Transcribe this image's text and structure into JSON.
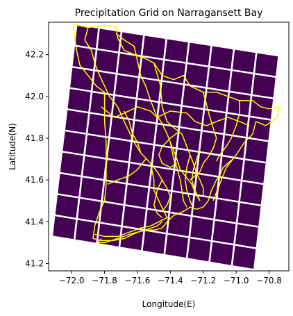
{
  "chart_data": {
    "type": "heatmap",
    "title": "Precipitation Grid on Narragansett Bay",
    "xlabel": "Longitude(E)",
    "ylabel": "Latitude(N)",
    "xlim": [
      -72.14,
      -70.68
    ],
    "ylim": [
      41.165,
      42.355
    ],
    "xticks": [
      -72.0,
      -71.8,
      -71.6,
      -71.4,
      -71.2,
      -71.0,
      -70.8
    ],
    "xtick_labels": [
      "−72.0",
      "−71.8",
      "−71.6",
      "−71.4",
      "−71.2",
      "−71.0",
      "−70.8"
    ],
    "yticks": [
      41.2,
      41.4,
      41.6,
      41.8,
      42.0,
      42.2
    ],
    "ytick_labels": [
      "41.2",
      "41.4",
      "41.6",
      "41.8",
      "42.0",
      "42.2"
    ],
    "grid": {
      "rows": 10,
      "cols": 9,
      "corners": {
        "top_left": [
          -71.97,
          42.345
        ],
        "top_right": [
          -70.74,
          42.195
        ],
        "bottom_left": [
          -72.12,
          41.33
        ],
        "bottom_right": [
          -70.89,
          41.17
        ]
      },
      "cell_color": "#440154"
    },
    "boundary_color": "#ffff00",
    "boundaries": [
      [
        [
          -71.99,
          42.345
        ],
        [
          -71.9,
          42.33
        ],
        [
          -71.8,
          42.34
        ],
        [
          -71.73,
          42.33
        ],
        [
          -71.72,
          42.28
        ],
        [
          -71.68,
          42.22
        ],
        [
          -71.62,
          42.2
        ],
        [
          -71.55,
          42.18
        ],
        [
          -71.5,
          42.16
        ],
        [
          -71.45,
          42.1
        ],
        [
          -71.38,
          42.08
        ],
        [
          -71.32,
          42.1
        ],
        [
          -71.28,
          42.05
        ],
        [
          -71.2,
          42.02
        ],
        [
          -71.12,
          42.02
        ],
        [
          -71.05,
          42.0
        ],
        [
          -70.98,
          41.98
        ],
        [
          -70.9,
          41.98
        ],
        [
          -70.85,
          41.95
        ],
        [
          -70.8,
          41.94
        ],
        [
          -70.74,
          41.95
        ],
        [
          -70.75,
          41.9
        ],
        [
          -70.82,
          41.86
        ],
        [
          -70.88,
          41.88
        ],
        [
          -70.9,
          41.82
        ],
        [
          -70.95,
          41.78
        ],
        [
          -71.0,
          41.72
        ],
        [
          -71.02,
          41.7
        ],
        [
          -71.08,
          41.66
        ],
        [
          -71.1,
          41.62
        ],
        [
          -71.12,
          41.6
        ],
        [
          -71.15,
          41.55
        ],
        [
          -71.17,
          41.5
        ],
        [
          -71.2,
          41.47
        ],
        [
          -71.24,
          41.46
        ],
        [
          -71.28,
          41.47
        ],
        [
          -71.32,
          41.45
        ],
        [
          -71.38,
          41.43
        ],
        [
          -71.42,
          41.4
        ],
        [
          -71.45,
          41.37
        ],
        [
          -71.5,
          41.36
        ],
        [
          -71.55,
          41.36
        ],
        [
          -71.6,
          41.35
        ],
        [
          -71.68,
          41.32
        ],
        [
          -71.75,
          41.31
        ],
        [
          -71.82,
          41.31
        ],
        [
          -71.87,
          41.32
        ],
        [
          -71.86,
          41.38
        ],
        [
          -71.83,
          41.45
        ],
        [
          -71.8,
          41.5
        ],
        [
          -71.79,
          41.58
        ],
        [
          -71.79,
          41.68
        ],
        [
          -71.79,
          41.78
        ],
        [
          -71.8,
          41.88
        ],
        [
          -71.8,
          41.98
        ],
        [
          -71.8,
          42.02
        ],
        [
          -71.85,
          42.05
        ],
        [
          -71.9,
          42.1
        ],
        [
          -71.95,
          42.15
        ],
        [
          -71.97,
          42.22
        ],
        [
          -71.98,
          42.28
        ],
        [
          -71.99,
          42.345
        ]
      ],
      [
        [
          -71.9,
          42.33
        ],
        [
          -71.92,
          42.27
        ],
        [
          -71.88,
          42.22
        ],
        [
          -71.86,
          42.16
        ],
        [
          -71.83,
          42.1
        ],
        [
          -71.8,
          42.05
        ],
        [
          -71.77,
          42.0
        ],
        [
          -71.72,
          41.95
        ],
        [
          -71.68,
          41.88
        ],
        [
          -71.65,
          41.83
        ],
        [
          -71.62,
          41.78
        ],
        [
          -71.58,
          41.73
        ],
        [
          -71.52,
          41.68
        ],
        [
          -71.48,
          41.64
        ],
        [
          -71.45,
          41.6
        ],
        [
          -71.42,
          41.56
        ],
        [
          -71.4,
          41.52
        ],
        [
          -71.42,
          41.48
        ],
        [
          -71.45,
          41.45
        ]
      ],
      [
        [
          -71.73,
          42.3
        ],
        [
          -71.68,
          42.27
        ],
        [
          -71.62,
          42.24
        ],
        [
          -71.6,
          42.17
        ],
        [
          -71.58,
          42.1
        ],
        [
          -71.55,
          42.05
        ],
        [
          -71.52,
          41.98
        ],
        [
          -71.49,
          41.92
        ],
        [
          -71.45,
          41.87
        ],
        [
          -71.42,
          41.82
        ],
        [
          -71.4,
          41.78
        ],
        [
          -71.38,
          41.74
        ],
        [
          -71.36,
          41.7
        ],
        [
          -71.34,
          41.65
        ],
        [
          -71.3,
          41.61
        ],
        [
          -71.27,
          41.58
        ],
        [
          -71.25,
          41.54
        ],
        [
          -71.22,
          41.5
        ]
      ],
      [
        [
          -71.5,
          42.16
        ],
        [
          -71.46,
          42.05
        ],
        [
          -71.45,
          41.95
        ],
        [
          -71.42,
          41.88
        ],
        [
          -71.38,
          41.85
        ],
        [
          -71.33,
          41.82
        ],
        [
          -71.3,
          41.76
        ],
        [
          -71.28,
          41.72
        ],
        [
          -71.26,
          41.68
        ],
        [
          -71.24,
          41.63
        ],
        [
          -71.22,
          41.6
        ],
        [
          -71.2,
          41.56
        ],
        [
          -71.2,
          41.52
        ]
      ],
      [
        [
          -71.2,
          42.02
        ],
        [
          -71.18,
          41.96
        ],
        [
          -71.16,
          41.9
        ],
        [
          -71.14,
          41.85
        ],
        [
          -71.12,
          41.8
        ],
        [
          -71.14,
          41.75
        ],
        [
          -71.17,
          41.71
        ],
        [
          -71.2,
          41.68
        ],
        [
          -71.22,
          41.64
        ],
        [
          -71.25,
          41.62
        ],
        [
          -71.28,
          41.6
        ]
      ],
      [
        [
          -70.98,
          41.98
        ],
        [
          -70.98,
          41.92
        ],
        [
          -71.0,
          41.86
        ],
        [
          -71.03,
          41.8
        ],
        [
          -71.06,
          41.76
        ],
        [
          -71.1,
          41.72
        ],
        [
          -71.12,
          41.69
        ]
      ],
      [
        [
          -71.82,
          41.95
        ],
        [
          -71.74,
          41.9
        ],
        [
          -71.68,
          41.92
        ],
        [
          -71.6,
          41.95
        ],
        [
          -71.52,
          41.93
        ],
        [
          -71.48,
          41.9
        ],
        [
          -71.4,
          41.93
        ],
        [
          -71.3,
          41.92
        ],
        [
          -71.25,
          41.88
        ],
        [
          -71.18,
          41.86
        ],
        [
          -71.12,
          41.88
        ],
        [
          -71.05,
          41.9
        ],
        [
          -70.98,
          41.88
        ],
        [
          -70.92,
          41.86
        ]
      ],
      [
        [
          -71.55,
          41.7
        ],
        [
          -71.6,
          41.65
        ],
        [
          -71.65,
          41.62
        ],
        [
          -71.72,
          41.6
        ],
        [
          -71.78,
          41.58
        ]
      ],
      [
        [
          -71.52,
          41.68
        ],
        [
          -71.5,
          41.6
        ],
        [
          -71.5,
          41.55
        ],
        [
          -71.47,
          41.5
        ],
        [
          -71.44,
          41.45
        ],
        [
          -71.42,
          41.42
        ],
        [
          -71.47,
          41.4
        ],
        [
          -71.52,
          41.38
        ],
        [
          -71.58,
          41.37
        ],
        [
          -71.65,
          41.35
        ],
        [
          -71.72,
          41.33
        ],
        [
          -71.8,
          41.33
        ],
        [
          -71.86,
          41.34
        ]
      ],
      [
        [
          -71.4,
          41.78
        ],
        [
          -71.38,
          41.7
        ],
        [
          -71.36,
          41.66
        ],
        [
          -71.34,
          41.6
        ],
        [
          -71.33,
          41.55
        ],
        [
          -71.32,
          41.5
        ],
        [
          -71.3,
          41.47
        ]
      ],
      [
        [
          -71.28,
          41.72
        ],
        [
          -71.3,
          41.66
        ],
        [
          -71.31,
          41.6
        ],
        [
          -71.3,
          41.55
        ],
        [
          -71.28,
          41.5
        ],
        [
          -71.27,
          41.48
        ]
      ],
      [
        [
          -71.22,
          41.5
        ],
        [
          -71.25,
          41.55
        ],
        [
          -71.27,
          41.6
        ],
        [
          -71.26,
          41.65
        ],
        [
          -71.24,
          41.7
        ],
        [
          -71.22,
          41.75
        ]
      ],
      [
        [
          -71.35,
          41.83
        ],
        [
          -71.4,
          41.8
        ],
        [
          -71.45,
          41.76
        ],
        [
          -71.47,
          41.72
        ],
        [
          -71.45,
          41.68
        ],
        [
          -71.4,
          41.66
        ],
        [
          -71.36,
          41.68
        ]
      ],
      [
        [
          -71.82,
          41.32
        ],
        [
          -71.84,
          41.3
        ],
        [
          -71.8,
          41.3
        ],
        [
          -71.72,
          41.32
        ],
        [
          -71.65,
          41.34
        ],
        [
          -71.55,
          41.36
        ],
        [
          -71.48,
          41.38
        ],
        [
          -71.45,
          41.4
        ]
      ],
      [
        [
          -71.45,
          41.6
        ],
        [
          -71.48,
          41.55
        ],
        [
          -71.5,
          41.48
        ],
        [
          -71.48,
          41.44
        ],
        [
          -71.45,
          41.42
        ]
      ],
      [
        [
          -71.02,
          41.7
        ],
        [
          -71.06,
          41.66
        ],
        [
          -71.08,
          41.62
        ],
        [
          -71.1,
          41.58
        ],
        [
          -71.12,
          41.54
        ],
        [
          -71.14,
          41.5
        ]
      ],
      [
        [
          -71.58,
          41.73
        ],
        [
          -71.6,
          41.78
        ],
        [
          -71.63,
          41.82
        ],
        [
          -71.65,
          41.88
        ],
        [
          -71.68,
          41.93
        ]
      ]
    ]
  }
}
